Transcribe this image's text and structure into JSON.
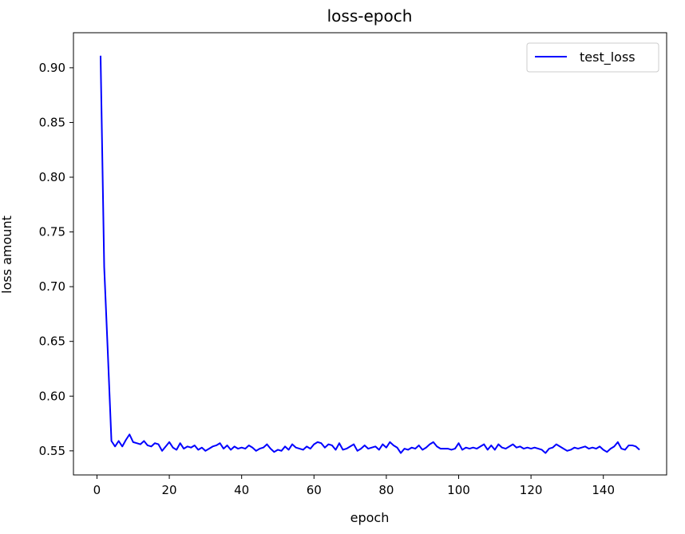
{
  "chart_data": {
    "type": "line",
    "title": "loss-epoch",
    "xlabel": "epoch",
    "ylabel": "loss amount",
    "xlim": [
      -6.5,
      157.5
    ],
    "ylim": [
      0.528,
      0.932
    ],
    "xticks": [
      0,
      20,
      40,
      60,
      80,
      100,
      120,
      140
    ],
    "yticks": [
      0.55,
      0.6,
      0.65,
      0.7,
      0.75,
      0.8,
      0.85,
      0.9
    ],
    "grid": false,
    "legend": "top-right",
    "series": [
      {
        "name": "test_loss",
        "color": "#0000ff",
        "x": [
          1,
          2,
          3,
          4,
          5,
          6,
          7,
          8,
          9,
          10,
          11,
          12,
          13,
          14,
          15,
          16,
          17,
          18,
          19,
          20,
          21,
          22,
          23,
          24,
          25,
          26,
          27,
          28,
          29,
          30,
          31,
          32,
          33,
          34,
          35,
          36,
          37,
          38,
          39,
          40,
          41,
          42,
          43,
          44,
          45,
          46,
          47,
          48,
          49,
          50,
          51,
          52,
          53,
          54,
          55,
          56,
          57,
          58,
          59,
          60,
          61,
          62,
          63,
          64,
          65,
          66,
          67,
          68,
          69,
          70,
          71,
          72,
          73,
          74,
          75,
          76,
          77,
          78,
          79,
          80,
          81,
          82,
          83,
          84,
          85,
          86,
          87,
          88,
          89,
          90,
          91,
          92,
          93,
          94,
          95,
          96,
          97,
          98,
          99,
          100,
          101,
          102,
          103,
          104,
          105,
          106,
          107,
          108,
          109,
          110,
          111,
          112,
          113,
          114,
          115,
          116,
          117,
          118,
          119,
          120,
          121,
          122,
          123,
          124,
          125,
          126,
          127,
          128,
          129,
          130,
          131,
          132,
          133,
          134,
          135,
          136,
          137,
          138,
          139,
          140,
          141,
          142,
          143,
          144,
          145,
          146,
          147,
          148,
          149,
          150
        ],
        "values": [
          0.911,
          0.718,
          0.64,
          0.559,
          0.554,
          0.559,
          0.554,
          0.56,
          0.565,
          0.558,
          0.557,
          0.556,
          0.559,
          0.555,
          0.554,
          0.557,
          0.556,
          0.55,
          0.554,
          0.558,
          0.553,
          0.551,
          0.557,
          0.552,
          0.554,
          0.553,
          0.555,
          0.551,
          0.553,
          0.55,
          0.552,
          0.554,
          0.555,
          0.557,
          0.552,
          0.555,
          0.551,
          0.554,
          0.552,
          0.553,
          0.552,
          0.555,
          0.553,
          0.55,
          0.552,
          0.553,
          0.556,
          0.552,
          0.549,
          0.551,
          0.55,
          0.554,
          0.551,
          0.556,
          0.553,
          0.552,
          0.551,
          0.554,
          0.552,
          0.556,
          0.558,
          0.557,
          0.553,
          0.556,
          0.555,
          0.551,
          0.557,
          0.551,
          0.552,
          0.554,
          0.556,
          0.55,
          0.552,
          0.555,
          0.552,
          0.553,
          0.554,
          0.551,
          0.556,
          0.553,
          0.558,
          0.555,
          0.553,
          0.548,
          0.552,
          0.551,
          0.553,
          0.552,
          0.555,
          0.551,
          0.553,
          0.556,
          0.558,
          0.554,
          0.552,
          0.552,
          0.552,
          0.551,
          0.552,
          0.557,
          0.551,
          0.553,
          0.552,
          0.553,
          0.552,
          0.554,
          0.556,
          0.551,
          0.555,
          0.551,
          0.556,
          0.553,
          0.552,
          0.554,
          0.556,
          0.553,
          0.554,
          0.552,
          0.553,
          0.552,
          0.553,
          0.552,
          0.551,
          0.548,
          0.552,
          0.553,
          0.556,
          0.554,
          0.552,
          0.55,
          0.551,
          0.553,
          0.552,
          0.553,
          0.554,
          0.552,
          0.553,
          0.552,
          0.554,
          0.551,
          0.549,
          0.552,
          0.554,
          0.558,
          0.552,
          0.551,
          0.555,
          0.555,
          0.554,
          0.551
        ]
      }
    ]
  }
}
